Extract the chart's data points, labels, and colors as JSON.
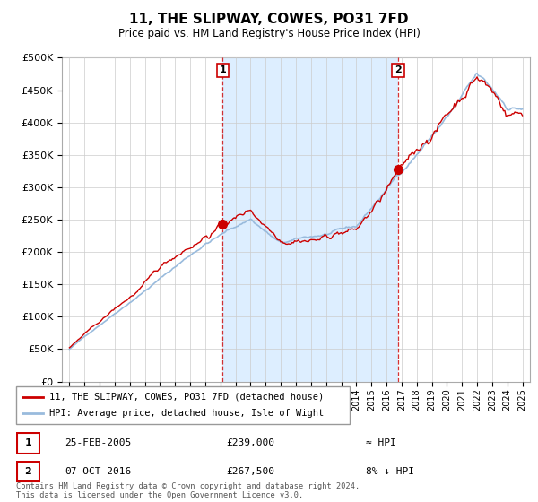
{
  "title": "11, THE SLIPWAY, COWES, PO31 7FD",
  "subtitle": "Price paid vs. HM Land Registry's House Price Index (HPI)",
  "sale1_date": "25-FEB-2005",
  "sale1_price": 239000,
  "sale2_date": "07-OCT-2016",
  "sale2_price": 267500,
  "sale1_note": "≈ HPI",
  "sale2_note": "8% ↓ HPI",
  "legend_line1": "11, THE SLIPWAY, COWES, PO31 7FD (detached house)",
  "legend_line2": "HPI: Average price, detached house, Isle of Wight",
  "footer": "Contains HM Land Registry data © Crown copyright and database right 2024.\nThis data is licensed under the Open Government Licence v3.0.",
  "table_row1": [
    "1",
    "25-FEB-2005",
    "£239,000",
    "≈ HPI"
  ],
  "table_row2": [
    "2",
    "07-OCT-2016",
    "£267,500",
    "8% ↓ HPI"
  ],
  "price_color": "#cc0000",
  "hpi_color": "#99bbdd",
  "shade_color": "#ddeeff",
  "vline_color": "#cc0000",
  "background_color": "#ffffff",
  "grid_color": "#cccccc",
  "ylim": [
    0,
    500000
  ],
  "yticks": [
    0,
    50000,
    100000,
    150000,
    200000,
    250000,
    300000,
    350000,
    400000,
    450000,
    500000
  ],
  "sale1_year": 2005.14,
  "sale2_year": 2016.77
}
